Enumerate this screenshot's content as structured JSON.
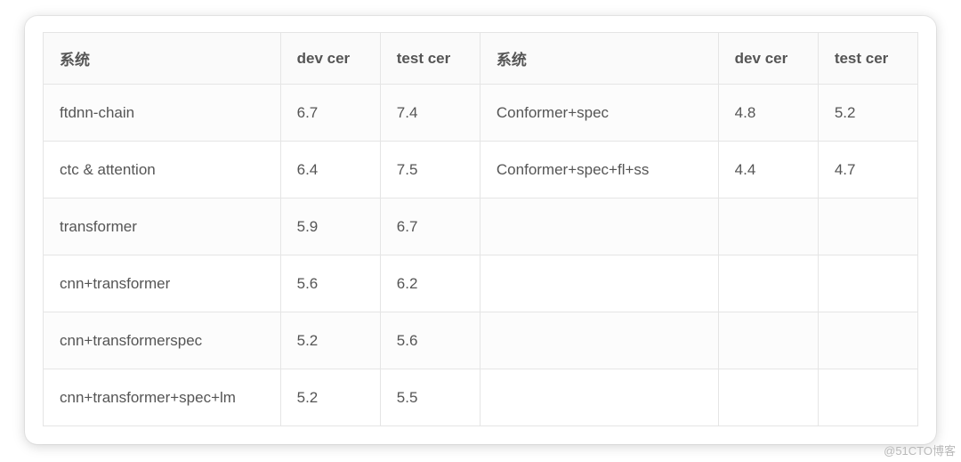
{
  "colors": {
    "border": "#e5e5e5",
    "header_bg": "#fafafa",
    "header_text": "#555555",
    "text": "#555555",
    "row_alt": "#fcfcfc",
    "card_bg": "#ffffff",
    "page_bg": "#ffffff"
  },
  "table": {
    "columns": [
      "系统",
      "dev cer",
      "test cer",
      "系统",
      "dev cer",
      "test cer"
    ],
    "rows": [
      [
        "ftdnn-chain",
        "6.7",
        "7.4",
        "Conformer+spec",
        "4.8",
        "5.2"
      ],
      [
        "ctc & attention",
        "6.4",
        "7.5",
        "Conformer+spec+fl+ss",
        "4.4",
        "4.7"
      ],
      [
        "transformer",
        "5.9",
        "6.7",
        "",
        "",
        ""
      ],
      [
        "cnn+transformer",
        "5.6",
        "6.2",
        "",
        "",
        ""
      ],
      [
        "cnn+transformerspec",
        "5.2",
        "5.6",
        "",
        "",
        ""
      ],
      [
        "cnn+transformer+spec+lm",
        "5.2",
        "5.5",
        "",
        "",
        ""
      ]
    ]
  },
  "watermark": "@51CTO博客"
}
